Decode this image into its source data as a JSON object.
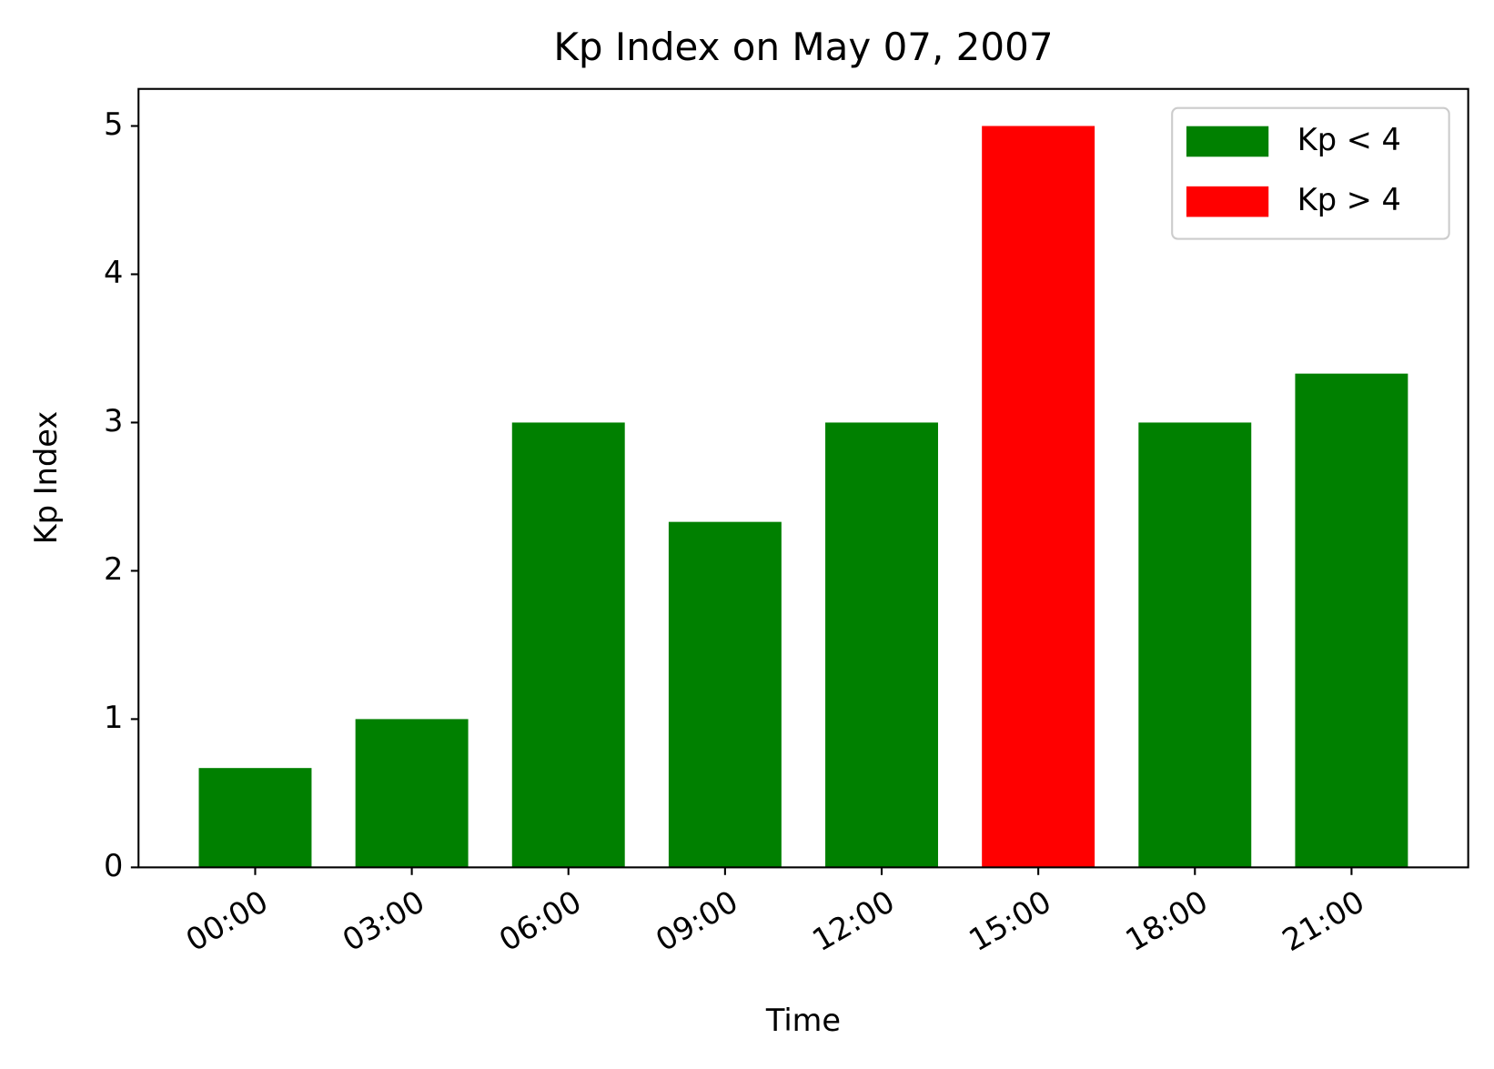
{
  "chart_data": {
    "type": "bar",
    "title": "Kp Index on May 07, 2007",
    "x_label": "Time",
    "y_label": "Kp Index",
    "categories": [
      "00:00",
      "03:00",
      "06:00",
      "09:00",
      "12:00",
      "15:00",
      "18:00",
      "21:00"
    ],
    "series": [
      {
        "name": "Kp < 4",
        "color": "#008000",
        "values": [
          0.67,
          1,
          3,
          2.33,
          3,
          null,
          3,
          3.33
        ]
      },
      {
        "name": "Kp > 4",
        "color": "#ff0000",
        "values": [
          null,
          null,
          null,
          null,
          null,
          5,
          null,
          null
        ]
      }
    ],
    "ylim": [
      0,
      5.25
    ],
    "yticks": [
      0,
      1,
      2,
      3,
      4,
      5
    ],
    "grid": false,
    "legend": "upper right"
  }
}
